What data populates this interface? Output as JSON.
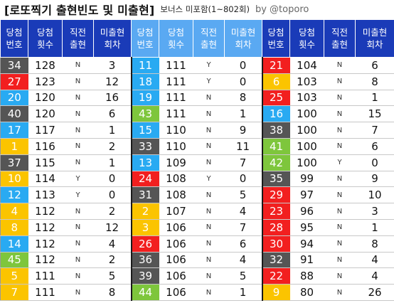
{
  "title": {
    "main": "[로또찍기 출현빈도 및 미출현]",
    "sub": "보너스 미포함(1~802회)",
    "by": "by @toporo"
  },
  "headers": [
    [
      "당첨",
      "번호"
    ],
    [
      "당첨",
      "횟수"
    ],
    [
      "직전",
      "출현"
    ],
    [
      "미출현",
      "회차"
    ],
    [
      "당첨",
      "번호"
    ],
    [
      "당첨",
      "횟수"
    ],
    [
      "직전",
      "출현"
    ],
    [
      "미출현",
      "회차"
    ],
    [
      "당첨",
      "번호"
    ],
    [
      "당첨",
      "횟수"
    ],
    [
      "직전",
      "출현"
    ],
    [
      "미출현",
      "회차"
    ]
  ],
  "colors": {
    "header_dark": "#1a3bb8",
    "header_light": "#5aa9f2",
    "ball_1_10": "#fbc400",
    "ball_11_20": "#29aaf2",
    "ball_21_30": "#f21f1f",
    "ball_31_40": "#555555",
    "ball_41_45": "#7ec63c"
  },
  "groups": [
    [
      {
        "num": "34",
        "count": "128",
        "prev": "N",
        "miss": "3"
      },
      {
        "num": "27",
        "count": "123",
        "prev": "N",
        "miss": "12"
      },
      {
        "num": "20",
        "count": "120",
        "prev": "N",
        "miss": "16"
      },
      {
        "num": "40",
        "count": "120",
        "prev": "N",
        "miss": "6"
      },
      {
        "num": "17",
        "count": "117",
        "prev": "N",
        "miss": "1"
      },
      {
        "num": "1",
        "count": "116",
        "prev": "N",
        "miss": "2"
      },
      {
        "num": "37",
        "count": "115",
        "prev": "N",
        "miss": "1"
      },
      {
        "num": "10",
        "count": "114",
        "prev": "Y",
        "miss": "0"
      },
      {
        "num": "12",
        "count": "113",
        "prev": "Y",
        "miss": "0"
      },
      {
        "num": "4",
        "count": "112",
        "prev": "N",
        "miss": "2"
      },
      {
        "num": "8",
        "count": "112",
        "prev": "N",
        "miss": "12"
      },
      {
        "num": "14",
        "count": "112",
        "prev": "N",
        "miss": "4"
      },
      {
        "num": "45",
        "count": "112",
        "prev": "N",
        "miss": "2"
      },
      {
        "num": "5",
        "count": "111",
        "prev": "N",
        "miss": "5"
      },
      {
        "num": "7",
        "count": "111",
        "prev": "N",
        "miss": "8"
      }
    ],
    [
      {
        "num": "11",
        "count": "111",
        "prev": "Y",
        "miss": "0"
      },
      {
        "num": "18",
        "count": "111",
        "prev": "Y",
        "miss": "0"
      },
      {
        "num": "19",
        "count": "111",
        "prev": "N",
        "miss": "8"
      },
      {
        "num": "43",
        "count": "111",
        "prev": "N",
        "miss": "1"
      },
      {
        "num": "15",
        "count": "110",
        "prev": "N",
        "miss": "9"
      },
      {
        "num": "33",
        "count": "110",
        "prev": "N",
        "miss": "11"
      },
      {
        "num": "13",
        "count": "109",
        "prev": "N",
        "miss": "7"
      },
      {
        "num": "24",
        "count": "108",
        "prev": "Y",
        "miss": "0"
      },
      {
        "num": "31",
        "count": "108",
        "prev": "N",
        "miss": "5"
      },
      {
        "num": "2",
        "count": "107",
        "prev": "N",
        "miss": "4"
      },
      {
        "num": "3",
        "count": "106",
        "prev": "N",
        "miss": "7"
      },
      {
        "num": "26",
        "count": "106",
        "prev": "N",
        "miss": "6"
      },
      {
        "num": "36",
        "count": "106",
        "prev": "N",
        "miss": "4"
      },
      {
        "num": "39",
        "count": "106",
        "prev": "N",
        "miss": "5"
      },
      {
        "num": "44",
        "count": "106",
        "prev": "N",
        "miss": "1"
      }
    ],
    [
      {
        "num": "21",
        "count": "104",
        "prev": "N",
        "miss": "6"
      },
      {
        "num": "6",
        "count": "103",
        "prev": "N",
        "miss": "8"
      },
      {
        "num": "25",
        "count": "103",
        "prev": "N",
        "miss": "1"
      },
      {
        "num": "16",
        "count": "100",
        "prev": "N",
        "miss": "15"
      },
      {
        "num": "38",
        "count": "100",
        "prev": "N",
        "miss": "7"
      },
      {
        "num": "41",
        "count": "100",
        "prev": "N",
        "miss": "6"
      },
      {
        "num": "42",
        "count": "100",
        "prev": "Y",
        "miss": "0"
      },
      {
        "num": "35",
        "count": "99",
        "prev": "N",
        "miss": "9"
      },
      {
        "num": "29",
        "count": "97",
        "prev": "N",
        "miss": "10"
      },
      {
        "num": "23",
        "count": "96",
        "prev": "N",
        "miss": "3"
      },
      {
        "num": "28",
        "count": "95",
        "prev": "N",
        "miss": "1"
      },
      {
        "num": "30",
        "count": "94",
        "prev": "N",
        "miss": "8"
      },
      {
        "num": "32",
        "count": "91",
        "prev": "N",
        "miss": "4"
      },
      {
        "num": "22",
        "count": "88",
        "prev": "N",
        "miss": "4"
      },
      {
        "num": "9",
        "count": "80",
        "prev": "N",
        "miss": "26"
      }
    ]
  ]
}
